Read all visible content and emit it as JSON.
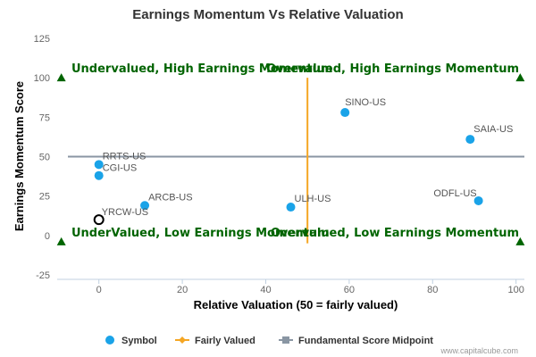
{
  "chart_data": {
    "type": "scatter",
    "title": "Earnings Momentum Vs Relative Valuation",
    "xlabel": "Relative Valuation (50 = fairly valued)",
    "ylabel": "Earnings Momentum Score",
    "xlim": [
      -10,
      102
    ],
    "ylim": [
      -25,
      125
    ],
    "x_ticks": [
      0,
      20,
      40,
      60,
      80,
      100
    ],
    "y_ticks": [
      -25,
      0,
      25,
      50,
      75,
      100,
      125
    ],
    "grid": false,
    "legend_position": "bottom",
    "colors": {
      "symbol": "#1aa3e8",
      "fairly_valued": "#f5a623",
      "midpoint": "#8a96a3",
      "quadrant_text": "#006400",
      "corner_marker": "#006400"
    },
    "symbols": [
      {
        "label": "SINO-US",
        "x": 59,
        "y": 78,
        "style": "filled"
      },
      {
        "label": "SAIA-US",
        "x": 89,
        "y": 61,
        "style": "filled"
      },
      {
        "label": "RRTS-US",
        "x": 0,
        "y": 45,
        "style": "filled"
      },
      {
        "label": "CGI-US",
        "x": 0,
        "y": 38,
        "style": "filled"
      },
      {
        "label": "ODFL-US",
        "x": 91,
        "y": 22,
        "style": "filled"
      },
      {
        "label": "ARCB-US",
        "x": 11,
        "y": 19,
        "style": "filled"
      },
      {
        "label": "ULH-US",
        "x": 46,
        "y": 18,
        "style": "filled"
      },
      {
        "label": "YRCW-US",
        "x": 0,
        "y": 10,
        "style": "hollow"
      }
    ],
    "fairly_valued_line": {
      "x": 50,
      "y_from": -5,
      "y_to": 100
    },
    "midpoint_line": {
      "y": 50
    },
    "corner_markers": [
      {
        "x": -9,
        "y": 100
      },
      {
        "x": 101,
        "y": 100
      },
      {
        "x": -9,
        "y": -4
      },
      {
        "x": 101,
        "y": -4
      }
    ],
    "quadrant_labels": {
      "top_left": "Undervalued, High Earnings Momentum",
      "top_right": "Overvalued, High Earnings Momentum",
      "bottom_left": "UnderValued, Low Earnings Momentum",
      "bottom_right": "Overvalued, Low Earnings Momentum"
    },
    "legend": [
      {
        "label": "Symbol",
        "kind": "dot"
      },
      {
        "label": "Fairly Valued",
        "kind": "line-diamond"
      },
      {
        "label": "Fundamental Score Midpoint",
        "kind": "line-square"
      }
    ],
    "credit": "www.capitalcube.com"
  }
}
